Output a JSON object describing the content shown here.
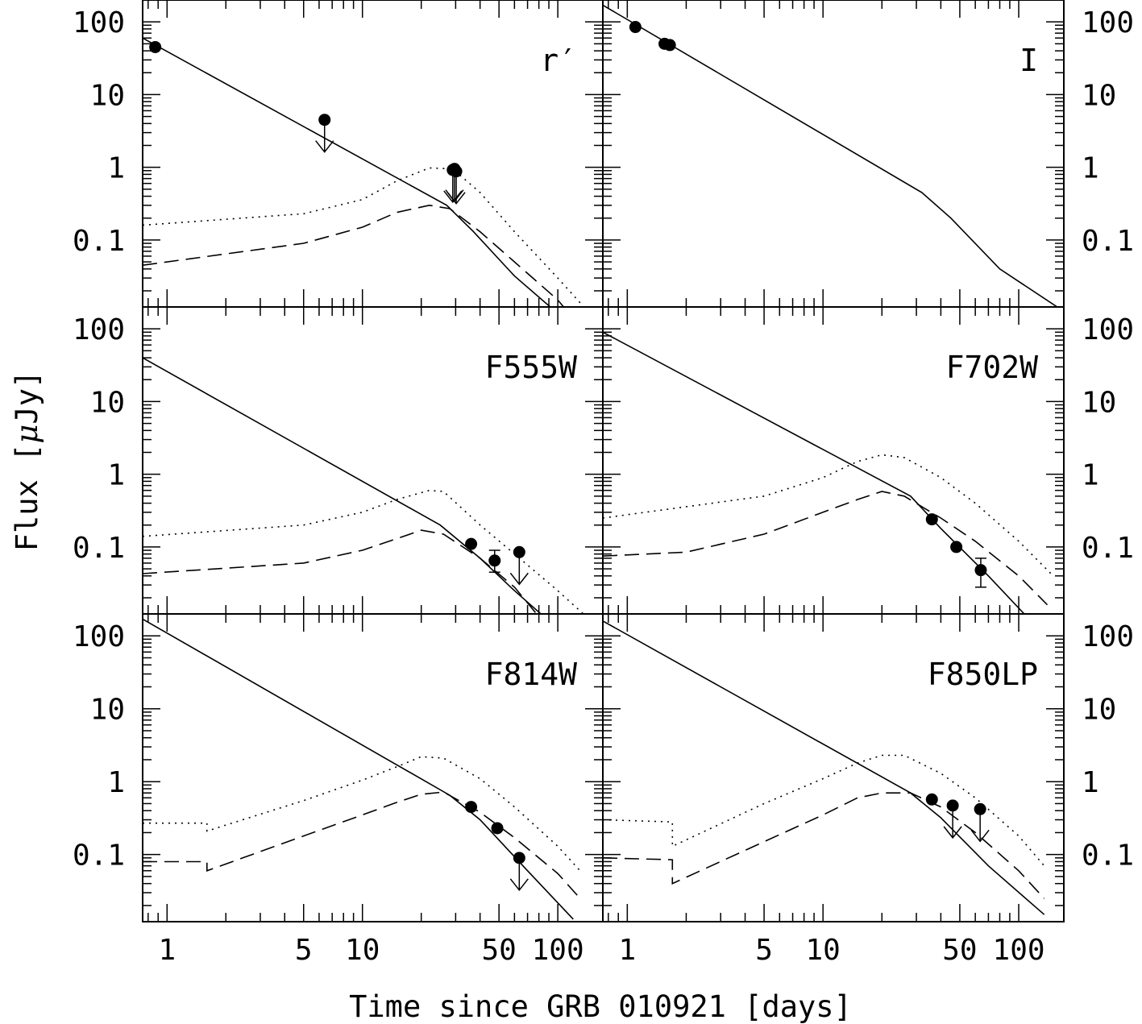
{
  "figure": {
    "xlabel": "Time since GRB 010921 [days]",
    "ylabel_prefix": "Flux [",
    "ylabel_mu": "μ",
    "ylabel_suffix": "Jy]"
  },
  "chart_data": {
    "type": "scatter",
    "x_scale": "log",
    "y_scale": "log",
    "xlim": [
      0.75,
      170
    ],
    "ylim": [
      0.012,
      200
    ],
    "x_tick_labels": [
      "1",
      "5",
      "10",
      "50",
      "100"
    ],
    "x_tick_values": [
      1,
      5,
      10,
      50,
      100
    ],
    "y_tick_labels": [
      "100",
      "10",
      "1",
      "0.1"
    ],
    "y_tick_values": [
      100,
      10,
      1,
      0.1
    ],
    "line_styles": {
      "afterglow": "solid",
      "sn_a": "dotted",
      "sn_b": "dashed"
    },
    "panels": [
      {
        "label": "r′",
        "detections": [
          [
            0.87,
            45
          ]
        ],
        "errorbars": [],
        "upper_limits": [
          [
            6.4,
            4.5
          ],
          [
            29.0,
            0.92
          ],
          [
            29.6,
            0.95
          ],
          [
            30.2,
            0.88
          ]
        ],
        "afterglow": [
          [
            0.75,
            60
          ],
          [
            27,
            0.3
          ],
          [
            37,
            0.13
          ],
          [
            60,
            0.032
          ],
          [
            95,
            0.011
          ]
        ],
        "sn_a": [
          [
            0.75,
            0.16
          ],
          [
            5,
            0.23
          ],
          [
            10,
            0.36
          ],
          [
            15,
            0.65
          ],
          [
            22,
            0.98
          ],
          [
            29,
            0.95
          ],
          [
            40,
            0.45
          ],
          [
            60,
            0.13
          ],
          [
            100,
            0.03
          ],
          [
            140,
            0.011
          ]
        ],
        "sn_b": [
          [
            0.75,
            0.045
          ],
          [
            5,
            0.09
          ],
          [
            10,
            0.15
          ],
          [
            15,
            0.24
          ],
          [
            22,
            0.3
          ],
          [
            28,
            0.27
          ],
          [
            40,
            0.13
          ],
          [
            60,
            0.05
          ],
          [
            100,
            0.015
          ],
          [
            110,
            0.011
          ]
        ]
      },
      {
        "label": "I",
        "detections": [
          [
            1.1,
            85
          ],
          [
            1.55,
            50
          ],
          [
            1.65,
            48
          ]
        ],
        "errorbars": [],
        "upper_limits": [],
        "afterglow": [
          [
            0.75,
            170
          ],
          [
            32,
            0.45
          ],
          [
            45,
            0.2
          ],
          [
            80,
            0.04
          ],
          [
            165,
            0.011
          ]
        ],
        "sn_a": [],
        "sn_b": []
      },
      {
        "label": "F555W",
        "detections": [
          [
            36,
            0.11
          ]
        ],
        "errorbars": [
          [
            47.5,
            0.065,
            0.045,
            0.09
          ]
        ],
        "upper_limits": [
          [
            63.5,
            0.085
          ]
        ],
        "afterglow": [
          [
            0.75,
            40
          ],
          [
            25,
            0.2
          ],
          [
            40,
            0.07
          ],
          [
            60,
            0.025
          ],
          [
            85,
            0.011
          ]
        ],
        "sn_a": [
          [
            0.75,
            0.14
          ],
          [
            5,
            0.2
          ],
          [
            10,
            0.3
          ],
          [
            15,
            0.45
          ],
          [
            22,
            0.6
          ],
          [
            26,
            0.58
          ],
          [
            40,
            0.2
          ],
          [
            60,
            0.08
          ],
          [
            100,
            0.025
          ],
          [
            140,
            0.011
          ]
        ],
        "sn_b": [
          [
            0.75,
            0.043
          ],
          [
            5,
            0.06
          ],
          [
            10,
            0.09
          ],
          [
            15,
            0.13
          ],
          [
            20,
            0.17
          ],
          [
            26,
            0.15
          ],
          [
            40,
            0.07
          ],
          [
            60,
            0.028
          ],
          [
            80,
            0.011
          ]
        ]
      },
      {
        "label": "F702W",
        "detections": [
          [
            36,
            0.24
          ],
          [
            48,
            0.1
          ]
        ],
        "errorbars": [
          [
            64,
            0.048,
            0.028,
            0.07
          ]
        ],
        "upper_limits": [],
        "afterglow": [
          [
            0.75,
            90
          ],
          [
            28,
            0.5
          ],
          [
            40,
            0.18
          ],
          [
            70,
            0.04
          ],
          [
            110,
            0.011
          ]
        ],
        "sn_a": [
          [
            0.75,
            0.25
          ],
          [
            5,
            0.5
          ],
          [
            10,
            0.9
          ],
          [
            15,
            1.5
          ],
          [
            20,
            1.85
          ],
          [
            26,
            1.7
          ],
          [
            40,
            0.9
          ],
          [
            60,
            0.4
          ],
          [
            100,
            0.12
          ],
          [
            150,
            0.04
          ]
        ],
        "sn_b": [
          [
            0.75,
            0.075
          ],
          [
            2,
            0.085
          ],
          [
            5,
            0.15
          ],
          [
            10,
            0.3
          ],
          [
            15,
            0.45
          ],
          [
            20,
            0.58
          ],
          [
            26,
            0.5
          ],
          [
            40,
            0.25
          ],
          [
            60,
            0.12
          ],
          [
            100,
            0.04
          ],
          [
            140,
            0.016
          ]
        ]
      },
      {
        "label": "F814W",
        "detections": [
          [
            36,
            0.45
          ],
          [
            49,
            0.23
          ]
        ],
        "errorbars": [],
        "upper_limits": [
          [
            63.5,
            0.09
          ]
        ],
        "afterglow": [
          [
            0.75,
            170
          ],
          [
            28,
            0.65
          ],
          [
            40,
            0.3
          ],
          [
            70,
            0.06
          ],
          [
            120,
            0.013
          ]
        ],
        "sn_a": [
          [
            0.75,
            0.27
          ],
          [
            1.6,
            0.27
          ],
          [
            1.6,
            0.21
          ],
          [
            5,
            0.55
          ],
          [
            10,
            1.05
          ],
          [
            15,
            1.6
          ],
          [
            20,
            2.2
          ],
          [
            26,
            2.1
          ],
          [
            40,
            1.1
          ],
          [
            60,
            0.45
          ],
          [
            100,
            0.13
          ],
          [
            130,
            0.06
          ]
        ],
        "sn_b": [
          [
            0.75,
            0.08
          ],
          [
            1.6,
            0.08
          ],
          [
            1.6,
            0.06
          ],
          [
            5,
            0.18
          ],
          [
            10,
            0.35
          ],
          [
            15,
            0.52
          ],
          [
            20,
            0.67
          ],
          [
            26,
            0.72
          ],
          [
            40,
            0.38
          ],
          [
            60,
            0.17
          ],
          [
            100,
            0.055
          ],
          [
            130,
            0.025
          ]
        ]
      },
      {
        "label": "F850LP",
        "detections": [
          [
            36,
            0.57
          ]
        ],
        "errorbars": [],
        "upper_limits": [
          [
            46,
            0.47
          ],
          [
            63.5,
            0.42
          ]
        ],
        "afterglow": [
          [
            0.75,
            160
          ],
          [
            28,
            0.7
          ],
          [
            40,
            0.32
          ],
          [
            70,
            0.07
          ],
          [
            135,
            0.015
          ]
        ],
        "sn_a": [
          [
            0.75,
            0.3
          ],
          [
            1.7,
            0.28
          ],
          [
            1.7,
            0.13
          ],
          [
            5,
            0.5
          ],
          [
            10,
            1.1
          ],
          [
            15,
            1.8
          ],
          [
            20,
            2.3
          ],
          [
            26,
            2.3
          ],
          [
            40,
            1.3
          ],
          [
            60,
            0.6
          ],
          [
            100,
            0.18
          ],
          [
            135,
            0.07
          ]
        ],
        "sn_b": [
          [
            0.75,
            0.09
          ],
          [
            1.7,
            0.085
          ],
          [
            1.7,
            0.04
          ],
          [
            5,
            0.15
          ],
          [
            10,
            0.35
          ],
          [
            15,
            0.6
          ],
          [
            20,
            0.7
          ],
          [
            28,
            0.7
          ],
          [
            40,
            0.45
          ],
          [
            60,
            0.2
          ],
          [
            100,
            0.06
          ],
          [
            135,
            0.025
          ]
        ]
      }
    ]
  }
}
